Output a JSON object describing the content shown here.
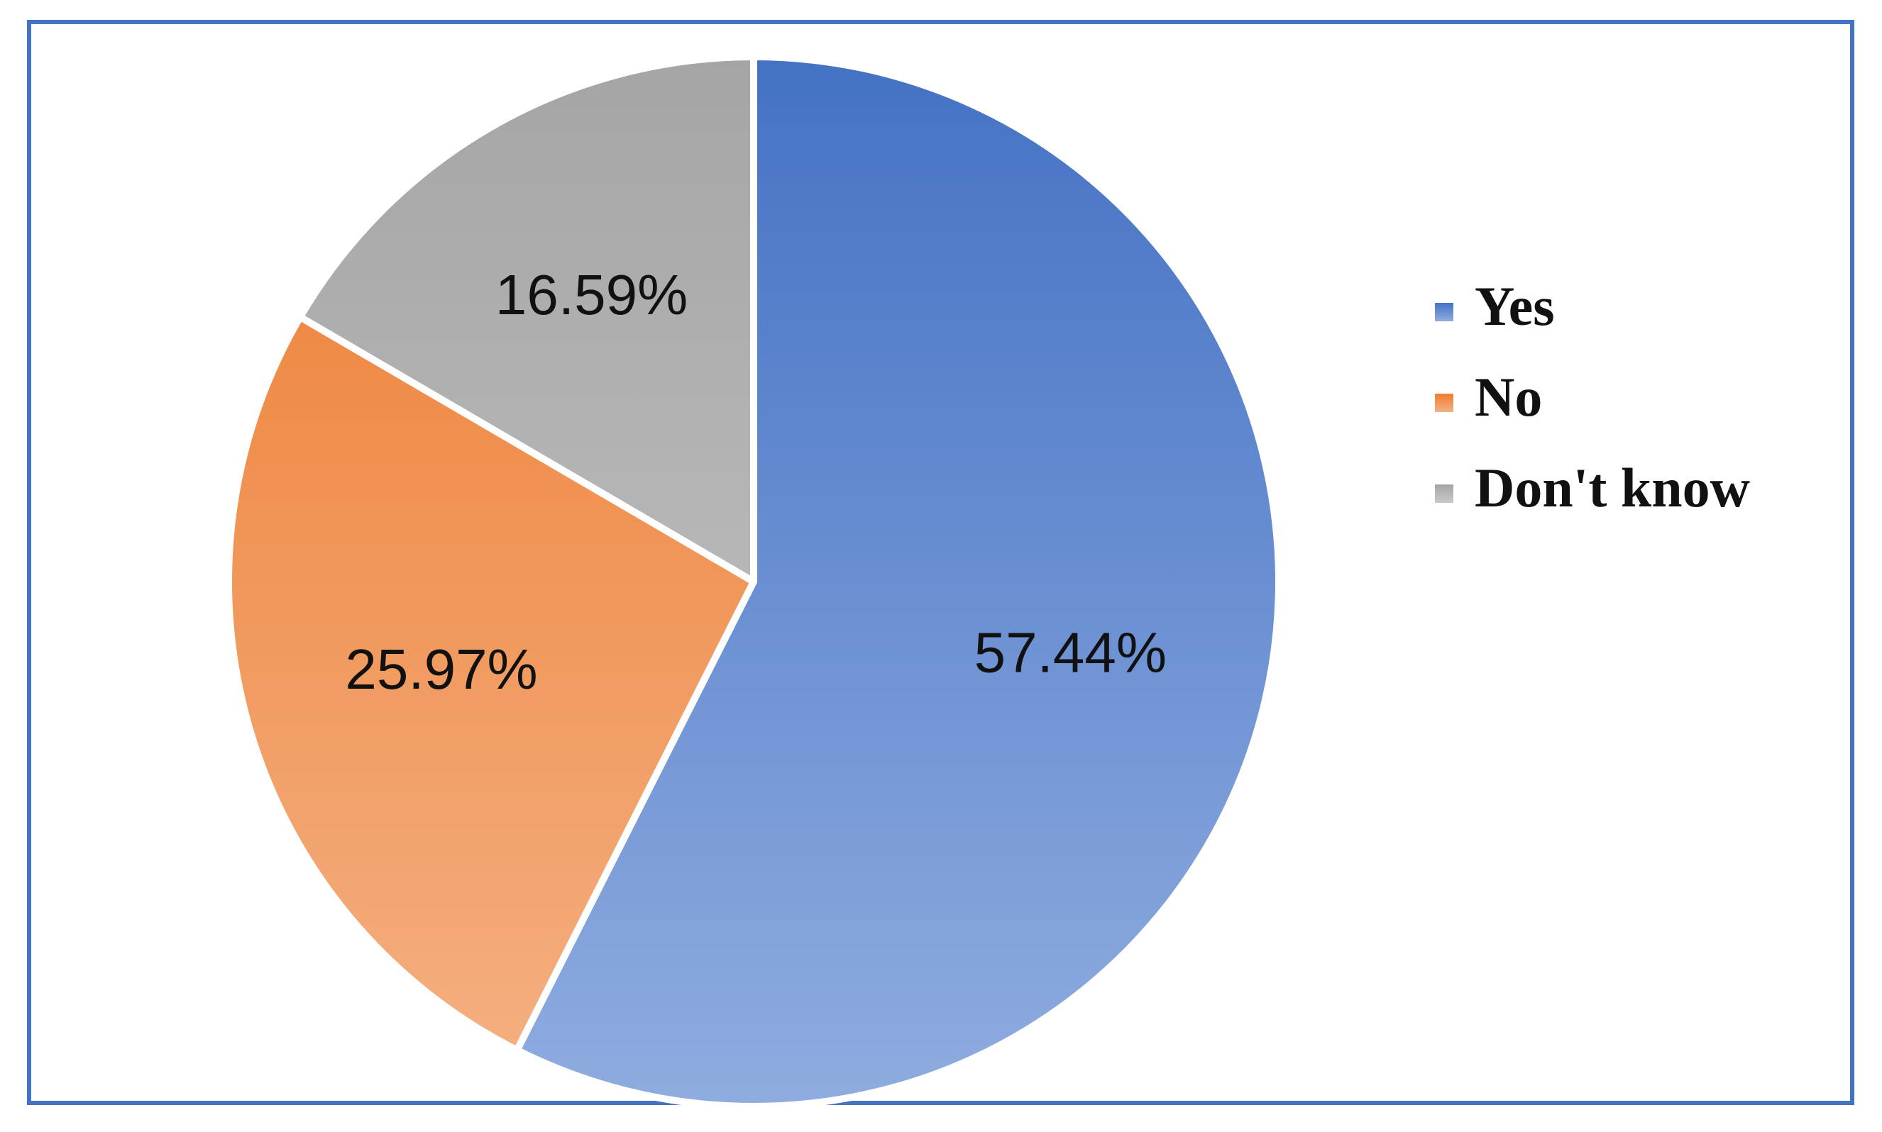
{
  "chart_data": {
    "type": "pie",
    "title": "",
    "categories": [
      "Yes",
      "No",
      "Don't know"
    ],
    "values": [
      57.44,
      25.97,
      16.59
    ],
    "value_labels": [
      "57.44%",
      "25.97%",
      "16.59%"
    ],
    "colors": {
      "Yes": [
        "#4472C4",
        "#8FACDF"
      ],
      "No": [
        "#ED7D31",
        "#F4B183"
      ],
      "Don't know": [
        "#A5A5A5",
        "#C9C9C9"
      ]
    },
    "start_angle_deg": 0,
    "direction": "clockwise",
    "legend": {
      "placement": "right",
      "entries": [
        "Yes",
        "No",
        "Don't know"
      ]
    }
  }
}
